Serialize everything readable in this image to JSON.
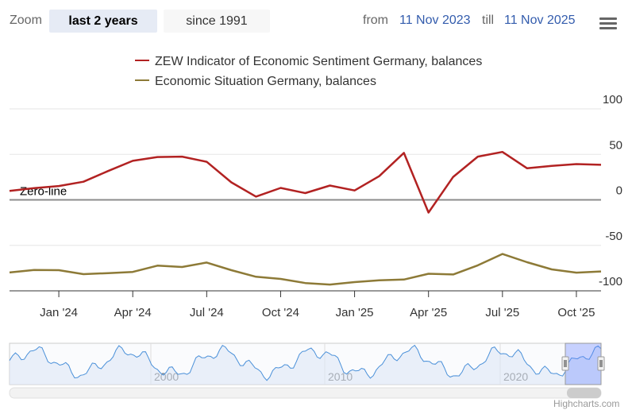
{
  "toolbar": {
    "zoom_label": "Zoom",
    "buttons": [
      {
        "label": "last 2 years",
        "active": true
      },
      {
        "label": "since 1991",
        "active": false
      }
    ],
    "from_label": "from",
    "from_value": "11 Nov 2023",
    "till_label": "till",
    "till_value": "11 Nov 2025"
  },
  "menu_icon": "hamburger-menu-icon",
  "credits": "Highcharts.com",
  "colors": {
    "sentiment": "#b22222",
    "situation": "#8d7a37",
    "navigator_line": "#4a90d9",
    "navigator_fill": "#dde8f6",
    "zero_line": "#8c8c8c"
  },
  "chart_data": {
    "type": "line",
    "title": "",
    "xlabel": "",
    "ylabel": "",
    "ylim": [
      -100,
      100
    ],
    "yticks": [
      "100",
      "50",
      "0",
      "-50",
      "-100"
    ],
    "xticks": [
      "Jan '24",
      "Apr '24",
      "Jul '24",
      "Oct '24",
      "Jan '25",
      "Apr '25",
      "Jul '25",
      "Oct '25"
    ],
    "annotations": [
      {
        "text": "Zero-line",
        "y": 0
      }
    ],
    "x": [
      "2023-11",
      "2023-12",
      "2024-01",
      "2024-02",
      "2024-03",
      "2024-04",
      "2024-05",
      "2024-06",
      "2024-07",
      "2024-08",
      "2024-09",
      "2024-10",
      "2024-11",
      "2024-12",
      "2025-01",
      "2025-02",
      "2025-03",
      "2025-04",
      "2025-05",
      "2025-06",
      "2025-07",
      "2025-08",
      "2025-09",
      "2025-10",
      "2025-11"
    ],
    "series": [
      {
        "name": "ZEW Indicator of Economic Sentiment Germany, balances",
        "values": [
          9.8,
          12.8,
          15.2,
          19.9,
          31.7,
          42.9,
          47.1,
          47.5,
          41.8,
          19.2,
          3.6,
          13.1,
          7.4,
          15.7,
          10.3,
          26.0,
          51.6,
          -14.0,
          25.2,
          47.5,
          52.7,
          34.7,
          37.3,
          39.3,
          38.5
        ]
      },
      {
        "name": "Economic Situation Germany, balances",
        "values": [
          -79.8,
          -77.1,
          -77.3,
          -81.7,
          -80.5,
          -79.2,
          -72.3,
          -73.8,
          -68.9,
          -77.3,
          -84.5,
          -86.9,
          -91.4,
          -93.1,
          -90.4,
          -88.5,
          -87.6,
          -81.2,
          -82.0,
          -72.0,
          -59.5,
          -68.6,
          -76.4,
          -80.0,
          -78.7
        ]
      }
    ],
    "navigator": {
      "xticks": [
        "2000",
        "2010",
        "2020"
      ],
      "selected_range": "last 2 years"
    }
  }
}
